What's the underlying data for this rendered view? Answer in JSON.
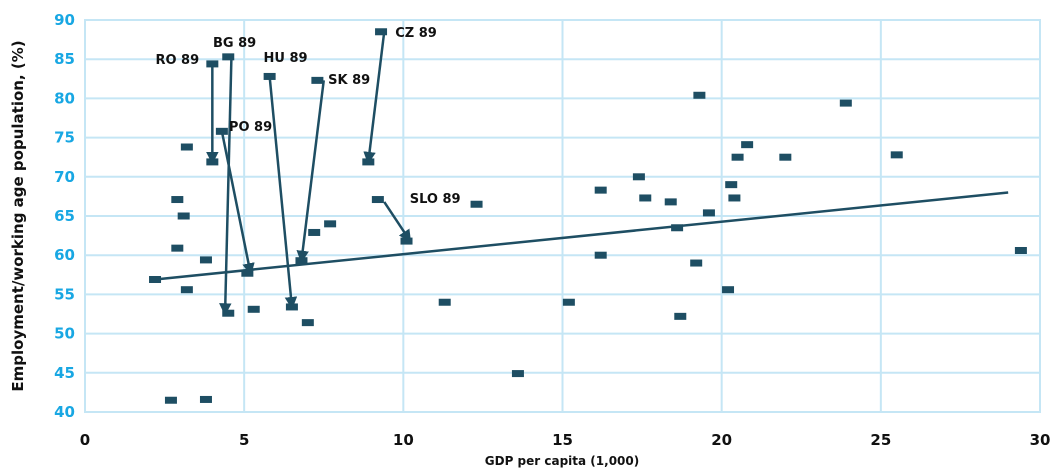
{
  "chart_data": {
    "type": "scatter",
    "xlabel": "GDP per capita (1,000)",
    "ylabel": "Employment/working age population, (%)",
    "xlim": [
      0,
      30
    ],
    "ylim": [
      40,
      90
    ],
    "x_ticks": [
      0,
      5,
      10,
      15,
      20,
      25,
      30
    ],
    "y_ticks": [
      40,
      45,
      50,
      55,
      60,
      65,
      70,
      75,
      80,
      85,
      90
    ],
    "grid": true,
    "colors": {
      "marker": "#1e4e63",
      "trend": "#1e4e63",
      "grid": "#c5e6f5",
      "ytick": "#18a7e3"
    },
    "points": [
      {
        "x": 2.2,
        "y": 56.9
      },
      {
        "x": 2.7,
        "y": 41.5
      },
      {
        "x": 2.9,
        "y": 67.1
      },
      {
        "x": 2.9,
        "y": 60.9
      },
      {
        "x": 3.1,
        "y": 65.0
      },
      {
        "x": 3.2,
        "y": 55.6
      },
      {
        "x": 3.2,
        "y": 73.8
      },
      {
        "x": 3.8,
        "y": 59.4
      },
      {
        "x": 3.8,
        "y": 41.6
      },
      {
        "x": 4.0,
        "y": 84.4
      },
      {
        "x": 4.0,
        "y": 71.9
      },
      {
        "x": 4.3,
        "y": 75.8
      },
      {
        "x": 4.5,
        "y": 85.3
      },
      {
        "x": 4.5,
        "y": 52.6
      },
      {
        "x": 5.1,
        "y": 57.7
      },
      {
        "x": 5.3,
        "y": 53.1
      },
      {
        "x": 5.8,
        "y": 82.8
      },
      {
        "x": 6.5,
        "y": 53.4
      },
      {
        "x": 6.8,
        "y": 59.3
      },
      {
        "x": 7.0,
        "y": 51.4
      },
      {
        "x": 7.2,
        "y": 62.9
      },
      {
        "x": 7.3,
        "y": 82.3
      },
      {
        "x": 7.7,
        "y": 64.0
      },
      {
        "x": 8.9,
        "y": 71.9
      },
      {
        "x": 9.2,
        "y": 67.1
      },
      {
        "x": 9.3,
        "y": 88.5
      },
      {
        "x": 10.1,
        "y": 61.8
      },
      {
        "x": 11.3,
        "y": 54.0
      },
      {
        "x": 12.3,
        "y": 66.5
      },
      {
        "x": 13.6,
        "y": 44.9
      },
      {
        "x": 15.2,
        "y": 54.0
      },
      {
        "x": 16.2,
        "y": 68.3
      },
      {
        "x": 16.2,
        "y": 60.0
      },
      {
        "x": 17.4,
        "y": 70.0
      },
      {
        "x": 17.6,
        "y": 67.3
      },
      {
        "x": 18.4,
        "y": 66.8
      },
      {
        "x": 18.6,
        "y": 63.5
      },
      {
        "x": 18.7,
        "y": 52.2
      },
      {
        "x": 19.2,
        "y": 59.0
      },
      {
        "x": 19.3,
        "y": 80.4
      },
      {
        "x": 19.6,
        "y": 65.4
      },
      {
        "x": 20.2,
        "y": 55.6
      },
      {
        "x": 20.3,
        "y": 69.0
      },
      {
        "x": 20.4,
        "y": 67.3
      },
      {
        "x": 20.5,
        "y": 72.5
      },
      {
        "x": 20.8,
        "y": 74.1
      },
      {
        "x": 22.0,
        "y": 72.5
      },
      {
        "x": 23.9,
        "y": 79.4
      },
      {
        "x": 25.5,
        "y": 72.8
      },
      {
        "x": 29.4,
        "y": 60.6
      }
    ],
    "trendline": {
      "x": [
        2.2,
        29.0
      ],
      "y": [
        56.9,
        68.0
      ]
    },
    "annotations": [
      {
        "label": "RO 89",
        "from": [
          4.0,
          84.4
        ],
        "to": [
          4.0,
          71.9
        ],
        "text_at": [
          2.9,
          85.0
        ],
        "anchor": "middle"
      },
      {
        "label": "BG 89",
        "from": [
          4.6,
          85.3
        ],
        "to": [
          4.4,
          52.6
        ],
        "text_at": [
          4.7,
          87.2
        ],
        "anchor": "middle"
      },
      {
        "label": "PO 89",
        "from": [
          4.3,
          75.8
        ],
        "to": [
          5.2,
          57.7
        ],
        "text_at": [
          5.2,
          76.5
        ],
        "anchor": "middle"
      },
      {
        "label": "HU 89",
        "from": [
          5.8,
          82.8
        ],
        "to": [
          6.5,
          53.4
        ],
        "text_at": [
          6.3,
          85.3
        ],
        "anchor": "middle"
      },
      {
        "label": "SK 89",
        "from": [
          7.5,
          82.3
        ],
        "to": [
          6.8,
          59.3
        ],
        "text_at": [
          8.3,
          82.5
        ],
        "anchor": "middle"
      },
      {
        "label": "CZ 89",
        "from": [
          9.4,
          88.5
        ],
        "to": [
          8.9,
          71.9
        ],
        "text_at": [
          10.4,
          88.5
        ],
        "anchor": "middle"
      },
      {
        "label": "SLO 89",
        "from": [
          9.4,
          66.8
        ],
        "to": [
          10.2,
          61.9
        ],
        "text_at": [
          11.0,
          67.3
        ],
        "anchor": "middle"
      }
    ]
  }
}
